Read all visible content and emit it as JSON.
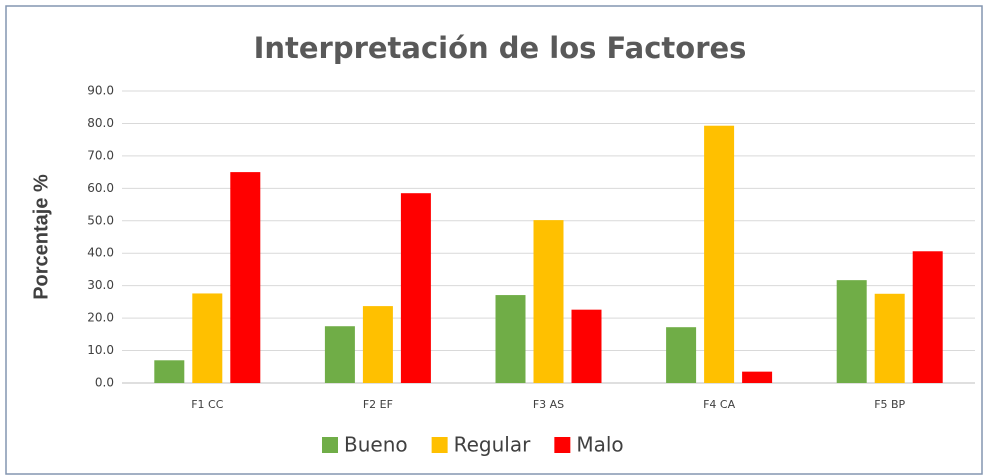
{
  "chart_data": {
    "type": "bar",
    "title": "Interpretación de los Factores",
    "y_label": "Porcentaje %",
    "categories": [
      "F1 CC",
      "F2 EF",
      "F3 AS",
      "F4 CA",
      "F5 BP"
    ],
    "series": [
      {
        "name": "Bueno",
        "color": "#70ad47",
        "values": [
          7.0,
          17.5,
          27.1,
          17.2,
          31.7
        ]
      },
      {
        "name": "Regular",
        "color": "#ffc000",
        "values": [
          27.6,
          23.7,
          50.2,
          79.3,
          27.5
        ]
      },
      {
        "name": "Malo",
        "color": "#ff0000",
        "values": [
          65.0,
          58.5,
          22.6,
          3.5,
          40.6
        ]
      }
    ],
    "ylim": [
      0,
      90
    ],
    "yticks": [
      {
        "value": 0,
        "label": "0.0"
      },
      {
        "value": 10,
        "label": "10.0"
      },
      {
        "value": 20,
        "label": "20.0"
      },
      {
        "value": 30,
        "label": "30.0"
      },
      {
        "value": 40,
        "label": "40.0"
      },
      {
        "value": 50,
        "label": "50.0"
      },
      {
        "value": 60,
        "label": "60.0"
      },
      {
        "value": 70,
        "label": "70.0"
      },
      {
        "value": 80,
        "label": "80.0"
      },
      {
        "value": 90,
        "label": "90.0"
      }
    ],
    "grid": true,
    "legend": "bottom"
  }
}
